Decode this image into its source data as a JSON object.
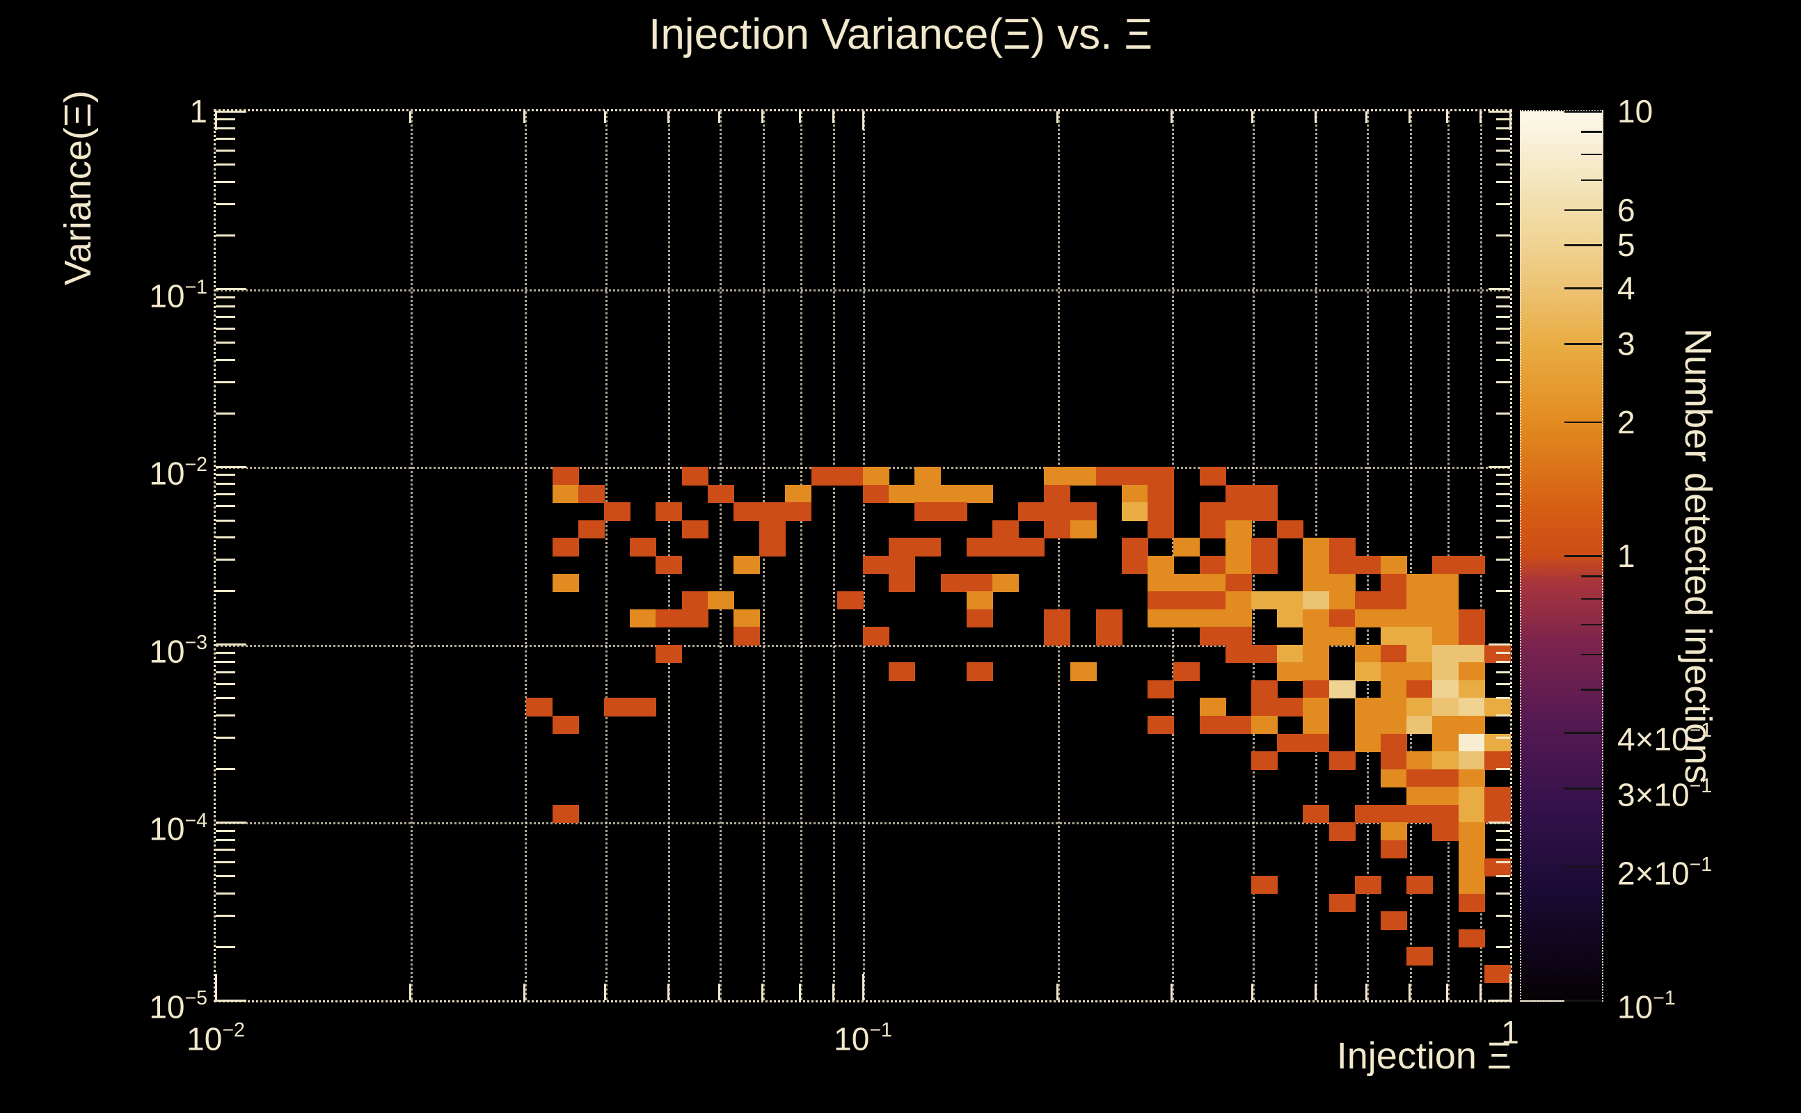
{
  "page": {
    "background": "#000000",
    "text_color": "#f2e8cb",
    "axis_color": "#f2e8cb",
    "grid_color": "#ebe2c8"
  },
  "chart_data": {
    "type": "heatmap",
    "title": "Injection Variance(Ξ) vs. Ξ",
    "x_axis": {
      "label": "Injection Ξ",
      "scale": "log",
      "min": 0.01,
      "max": 1,
      "tick_labels": [
        {
          "value": 0.01,
          "text": "10^-2"
        },
        {
          "value": 0.1,
          "text": "10^-1"
        },
        {
          "value": 1,
          "text": "1"
        }
      ]
    },
    "y_axis": {
      "label": "Variance(Ξ)",
      "scale": "log",
      "min": 1e-05,
      "max": 1,
      "tick_labels": [
        {
          "value": 1,
          "text": "1"
        },
        {
          "value": 0.1,
          "text": "10^-1"
        },
        {
          "value": 0.01,
          "text": "10^-2"
        },
        {
          "value": 0.001,
          "text": "10^-3"
        },
        {
          "value": 0.0001,
          "text": "10^-4"
        },
        {
          "value": 1e-05,
          "text": "10^-5"
        }
      ]
    },
    "z_axis": {
      "label": "Number detected injections",
      "scale": "log",
      "min": 0.1,
      "max": 10,
      "tick_labels": [
        {
          "value": 10,
          "text": "10"
        },
        {
          "value": 6,
          "text": "6"
        },
        {
          "value": 5,
          "text": "5"
        },
        {
          "value": 4,
          "text": "4"
        },
        {
          "value": 3,
          "text": "3"
        },
        {
          "value": 2,
          "text": "2"
        },
        {
          "value": 1,
          "text": "1"
        },
        {
          "value": 0.4,
          "text": "4×10^-1"
        },
        {
          "value": 0.3,
          "text": "3×10^-1"
        },
        {
          "value": 0.2,
          "text": "2×10^-1"
        },
        {
          "value": 0.1,
          "text": "10^-1"
        }
      ],
      "minor_tick_values": [
        9,
        8,
        7,
        0.9,
        0.8,
        0.7,
        0.6,
        0.5
      ]
    },
    "bins": {
      "nx": 50,
      "ny": 50
    },
    "grid": {
      "x_lines": "all_log_minors_and_decades",
      "y_lines": "decades_only",
      "style": "dotted"
    },
    "palette_stops": [
      [
        0.0,
        "#060104"
      ],
      [
        0.12,
        "#190b33"
      ],
      [
        0.22,
        "#36124b"
      ],
      [
        0.32,
        "#581a52"
      ],
      [
        0.4,
        "#7b234d"
      ],
      [
        0.47,
        "#a8353c"
      ],
      [
        0.5,
        "#cc4d17"
      ],
      [
        0.55,
        "#d55d13"
      ],
      [
        0.65,
        "#e28b20"
      ],
      [
        0.74,
        "#e9ad44"
      ],
      [
        0.8,
        "#ecc272"
      ],
      [
        0.85,
        "#efd392"
      ],
      [
        0.91,
        "#f3e2b6"
      ],
      [
        0.96,
        "#f8efd6"
      ],
      [
        1.0,
        "#fdf9ea"
      ]
    ],
    "cells_format": "[x_bin_from_left, y_bin_from_top, detected_count] on 50x50 log-log grid",
    "cells": [
      [
        13,
        20,
        1
      ],
      [
        18,
        20,
        1
      ],
      [
        23,
        20,
        1
      ],
      [
        24,
        20,
        1
      ],
      [
        25,
        20,
        2
      ],
      [
        27,
        20,
        2
      ],
      [
        32,
        20,
        2
      ],
      [
        33,
        20,
        2
      ],
      [
        34,
        20,
        1
      ],
      [
        35,
        20,
        1
      ],
      [
        36,
        20,
        1
      ],
      [
        38,
        20,
        1
      ],
      [
        13,
        21,
        2
      ],
      [
        14,
        21,
        1
      ],
      [
        19,
        21,
        1
      ],
      [
        22,
        21,
        2
      ],
      [
        25,
        21,
        1
      ],
      [
        26,
        21,
        2
      ],
      [
        27,
        21,
        2
      ],
      [
        28,
        21,
        2
      ],
      [
        29,
        21,
        2
      ],
      [
        32,
        21,
        1
      ],
      [
        35,
        21,
        2
      ],
      [
        36,
        21,
        1
      ],
      [
        39,
        21,
        1
      ],
      [
        40,
        21,
        1
      ],
      [
        15,
        22,
        1
      ],
      [
        17,
        22,
        1
      ],
      [
        20,
        22,
        1
      ],
      [
        21,
        22,
        1
      ],
      [
        22,
        22,
        1
      ],
      [
        27,
        22,
        1
      ],
      [
        28,
        22,
        1
      ],
      [
        31,
        22,
        1
      ],
      [
        32,
        22,
        1
      ],
      [
        33,
        22,
        1
      ],
      [
        35,
        22,
        3
      ],
      [
        36,
        22,
        1
      ],
      [
        38,
        22,
        1
      ],
      [
        39,
        22,
        1
      ],
      [
        40,
        22,
        1
      ],
      [
        14,
        23,
        1
      ],
      [
        18,
        23,
        1
      ],
      [
        21,
        23,
        1
      ],
      [
        30,
        23,
        1
      ],
      [
        32,
        23,
        1
      ],
      [
        33,
        23,
        2
      ],
      [
        36,
        23,
        1
      ],
      [
        38,
        23,
        1
      ],
      [
        39,
        23,
        2
      ],
      [
        41,
        23,
        1
      ],
      [
        13,
        24,
        1
      ],
      [
        16,
        24,
        1
      ],
      [
        21,
        24,
        1
      ],
      [
        26,
        24,
        1
      ],
      [
        27,
        24,
        1
      ],
      [
        29,
        24,
        1
      ],
      [
        30,
        24,
        1
      ],
      [
        31,
        24,
        1
      ],
      [
        35,
        24,
        1
      ],
      [
        37,
        24,
        2
      ],
      [
        39,
        24,
        2
      ],
      [
        40,
        24,
        1
      ],
      [
        42,
        24,
        2
      ],
      [
        43,
        24,
        1
      ],
      [
        17,
        25,
        1
      ],
      [
        20,
        25,
        2
      ],
      [
        25,
        25,
        1
      ],
      [
        26,
        25,
        1
      ],
      [
        35,
        25,
        1
      ],
      [
        36,
        25,
        2
      ],
      [
        38,
        25,
        1
      ],
      [
        39,
        25,
        2
      ],
      [
        40,
        25,
        1
      ],
      [
        42,
        25,
        2
      ],
      [
        43,
        25,
        1
      ],
      [
        44,
        25,
        1
      ],
      [
        45,
        25,
        2
      ],
      [
        47,
        25,
        1
      ],
      [
        48,
        25,
        1
      ],
      [
        13,
        26,
        2
      ],
      [
        26,
        26,
        1
      ],
      [
        28,
        26,
        1
      ],
      [
        29,
        26,
        1
      ],
      [
        30,
        26,
        2
      ],
      [
        36,
        26,
        2
      ],
      [
        37,
        26,
        2
      ],
      [
        38,
        26,
        2
      ],
      [
        39,
        26,
        1
      ],
      [
        42,
        26,
        2
      ],
      [
        43,
        26,
        2
      ],
      [
        45,
        26,
        1
      ],
      [
        46,
        26,
        2
      ],
      [
        47,
        26,
        2
      ],
      [
        18,
        27,
        1
      ],
      [
        19,
        27,
        2
      ],
      [
        24,
        27,
        1
      ],
      [
        29,
        27,
        2
      ],
      [
        36,
        27,
        1
      ],
      [
        37,
        27,
        1
      ],
      [
        38,
        27,
        1
      ],
      [
        39,
        27,
        2
      ],
      [
        40,
        27,
        3
      ],
      [
        41,
        27,
        3
      ],
      [
        42,
        27,
        4
      ],
      [
        43,
        27,
        2
      ],
      [
        44,
        27,
        1
      ],
      [
        45,
        27,
        1
      ],
      [
        46,
        27,
        2
      ],
      [
        47,
        27,
        2
      ],
      [
        16,
        28,
        2
      ],
      [
        17,
        28,
        1
      ],
      [
        18,
        28,
        1
      ],
      [
        20,
        28,
        2
      ],
      [
        29,
        28,
        1
      ],
      [
        32,
        28,
        1
      ],
      [
        34,
        28,
        1
      ],
      [
        36,
        28,
        2
      ],
      [
        37,
        28,
        2
      ],
      [
        38,
        28,
        2
      ],
      [
        39,
        28,
        2
      ],
      [
        41,
        28,
        3
      ],
      [
        42,
        28,
        2
      ],
      [
        43,
        28,
        1
      ],
      [
        44,
        28,
        2
      ],
      [
        45,
        28,
        2
      ],
      [
        46,
        28,
        2
      ],
      [
        47,
        28,
        2
      ],
      [
        48,
        28,
        1
      ],
      [
        20,
        29,
        1
      ],
      [
        25,
        29,
        1
      ],
      [
        32,
        29,
        1
      ],
      [
        34,
        29,
        1
      ],
      [
        38,
        29,
        1
      ],
      [
        39,
        29,
        1
      ],
      [
        42,
        29,
        2
      ],
      [
        43,
        29,
        2
      ],
      [
        45,
        29,
        3
      ],
      [
        46,
        29,
        3
      ],
      [
        47,
        29,
        2
      ],
      [
        48,
        29,
        1
      ],
      [
        17,
        30,
        1
      ],
      [
        39,
        30,
        1
      ],
      [
        40,
        30,
        1
      ],
      [
        41,
        30,
        3
      ],
      [
        42,
        30,
        2
      ],
      [
        44,
        30,
        2
      ],
      [
        45,
        30,
        1
      ],
      [
        46,
        30,
        3
      ],
      [
        47,
        30,
        4
      ],
      [
        48,
        30,
        4
      ],
      [
        49,
        30,
        1
      ],
      [
        26,
        31,
        1
      ],
      [
        29,
        31,
        1
      ],
      [
        33,
        31,
        2
      ],
      [
        37,
        31,
        1
      ],
      [
        41,
        31,
        2
      ],
      [
        42,
        31,
        2
      ],
      [
        44,
        31,
        3
      ],
      [
        45,
        31,
        2
      ],
      [
        46,
        31,
        2
      ],
      [
        47,
        31,
        4
      ],
      [
        48,
        31,
        2
      ],
      [
        36,
        32,
        1
      ],
      [
        40,
        32,
        1
      ],
      [
        42,
        32,
        1
      ],
      [
        43,
        32,
        5
      ],
      [
        45,
        32,
        2
      ],
      [
        46,
        32,
        1
      ],
      [
        47,
        32,
        5
      ],
      [
        48,
        32,
        3
      ],
      [
        12,
        33,
        1
      ],
      [
        15,
        33,
        1
      ],
      [
        16,
        33,
        1
      ],
      [
        38,
        33,
        2
      ],
      [
        40,
        33,
        1
      ],
      [
        41,
        33,
        1
      ],
      [
        42,
        33,
        2
      ],
      [
        44,
        33,
        2
      ],
      [
        45,
        33,
        2
      ],
      [
        46,
        33,
        3
      ],
      [
        47,
        33,
        4
      ],
      [
        48,
        33,
        5
      ],
      [
        49,
        33,
        3
      ],
      [
        13,
        34,
        1
      ],
      [
        36,
        34,
        1
      ],
      [
        38,
        34,
        1
      ],
      [
        39,
        34,
        1
      ],
      [
        40,
        34,
        2
      ],
      [
        42,
        34,
        2
      ],
      [
        44,
        34,
        2
      ],
      [
        45,
        34,
        2
      ],
      [
        46,
        34,
        4
      ],
      [
        47,
        34,
        2
      ],
      [
        48,
        34,
        2
      ],
      [
        41,
        35,
        1
      ],
      [
        42,
        35,
        1
      ],
      [
        44,
        35,
        2
      ],
      [
        45,
        35,
        1
      ],
      [
        47,
        35,
        2
      ],
      [
        48,
        35,
        8
      ],
      [
        49,
        35,
        3
      ],
      [
        40,
        36,
        1
      ],
      [
        43,
        36,
        1
      ],
      [
        45,
        36,
        1
      ],
      [
        46,
        36,
        2
      ],
      [
        47,
        36,
        3
      ],
      [
        48,
        36,
        4
      ],
      [
        49,
        36,
        1
      ],
      [
        45,
        37,
        2
      ],
      [
        46,
        37,
        1
      ],
      [
        47,
        37,
        1
      ],
      [
        48,
        37,
        2
      ],
      [
        46,
        38,
        2
      ],
      [
        47,
        38,
        2
      ],
      [
        48,
        38,
        3
      ],
      [
        49,
        38,
        1
      ],
      [
        13,
        39,
        1
      ],
      [
        42,
        39,
        1
      ],
      [
        44,
        39,
        1
      ],
      [
        45,
        39,
        1
      ],
      [
        46,
        39,
        1
      ],
      [
        47,
        39,
        1
      ],
      [
        48,
        39,
        3
      ],
      [
        49,
        39,
        1
      ],
      [
        43,
        40,
        1
      ],
      [
        45,
        40,
        2
      ],
      [
        47,
        40,
        1
      ],
      [
        48,
        40,
        2
      ],
      [
        45,
        41,
        1
      ],
      [
        48,
        41,
        2
      ],
      [
        48,
        42,
        2
      ],
      [
        49,
        42,
        1
      ],
      [
        40,
        43,
        1
      ],
      [
        44,
        43,
        1
      ],
      [
        46,
        43,
        1
      ],
      [
        48,
        43,
        2
      ],
      [
        43,
        44,
        1
      ],
      [
        48,
        44,
        1
      ],
      [
        45,
        45,
        1
      ],
      [
        48,
        46,
        1
      ],
      [
        46,
        47,
        1
      ],
      [
        49,
        48,
        1
      ]
    ]
  }
}
